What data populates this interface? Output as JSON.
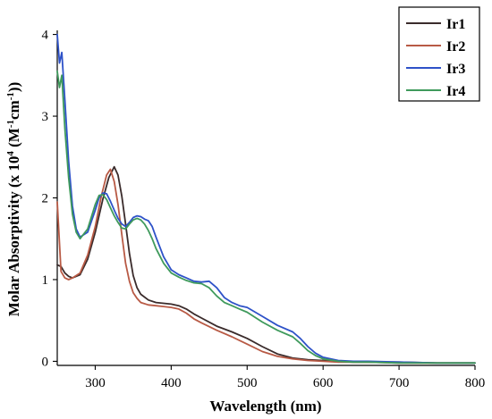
{
  "chart_data": {
    "type": "line",
    "title": "",
    "xlabel": "Wavelength (nm)",
    "ylabel": {
      "prefix": "Molar Absorptivity (x 10",
      "exp1": "4",
      "mid": " (M",
      "exp2": "-1",
      "mid2": "cm",
      "exp3": "-1",
      "suffix": "))"
    },
    "xlim": [
      250,
      800
    ],
    "ylim": [
      -0.05,
      4.05
    ],
    "xticks": [
      300,
      400,
      500,
      600,
      700,
      800
    ],
    "yticks": [
      0,
      1,
      2,
      3,
      4
    ],
    "grid": false,
    "legend_position": "top-right",
    "series": [
      {
        "name": "Ir1",
        "color": "#3a2b2b",
        "x": [
          250,
          255,
          260,
          265,
          270,
          280,
          290,
          300,
          310,
          318,
          325,
          330,
          335,
          340,
          345,
          350,
          355,
          360,
          370,
          380,
          390,
          400,
          410,
          420,
          430,
          440,
          460,
          480,
          500,
          520,
          540,
          560,
          580,
          600,
          620,
          640,
          660,
          700,
          750,
          800
        ],
        "y": [
          1.18,
          1.16,
          1.08,
          1.04,
          1.02,
          1.06,
          1.25,
          1.58,
          1.98,
          2.25,
          2.38,
          2.28,
          2.02,
          1.68,
          1.32,
          1.05,
          0.9,
          0.82,
          0.75,
          0.72,
          0.71,
          0.7,
          0.68,
          0.64,
          0.58,
          0.53,
          0.43,
          0.36,
          0.28,
          0.18,
          0.09,
          0.04,
          0.02,
          0.01,
          0.0,
          -0.01,
          -0.01,
          -0.01,
          -0.02,
          -0.02
        ]
      },
      {
        "name": "Ir2",
        "color": "#b85a45",
        "x": [
          250,
          255,
          260,
          265,
          270,
          280,
          290,
          300,
          308,
          315,
          320,
          325,
          330,
          335,
          340,
          345,
          350,
          355,
          360,
          370,
          380,
          390,
          400,
          410,
          420,
          430,
          440,
          460,
          480,
          500,
          520,
          540,
          560,
          580,
          600,
          620,
          640,
          660,
          700,
          750,
          800
        ],
        "y": [
          1.95,
          1.1,
          1.02,
          1.0,
          1.02,
          1.08,
          1.3,
          1.65,
          2.02,
          2.28,
          2.35,
          2.2,
          1.92,
          1.55,
          1.2,
          0.98,
          0.84,
          0.77,
          0.72,
          0.69,
          0.68,
          0.67,
          0.66,
          0.64,
          0.59,
          0.52,
          0.47,
          0.38,
          0.3,
          0.21,
          0.12,
          0.06,
          0.03,
          0.01,
          0.0,
          -0.01,
          -0.01,
          -0.01,
          -0.02,
          -0.02,
          -0.02
        ]
      },
      {
        "name": "Ir3",
        "color": "#2e52c8",
        "x": [
          250,
          253,
          256,
          260,
          265,
          270,
          275,
          280,
          290,
          300,
          305,
          310,
          315,
          320,
          325,
          330,
          335,
          340,
          345,
          350,
          355,
          360,
          365,
          370,
          375,
          380,
          390,
          400,
          410,
          420,
          430,
          440,
          450,
          460,
          470,
          480,
          490,
          500,
          520,
          540,
          560,
          570,
          580,
          590,
          600,
          620,
          640,
          660,
          700,
          750,
          800
        ],
        "y": [
          4.0,
          3.65,
          3.78,
          3.2,
          2.45,
          1.9,
          1.62,
          1.52,
          1.58,
          1.85,
          2.0,
          2.06,
          2.05,
          1.96,
          1.85,
          1.75,
          1.68,
          1.65,
          1.7,
          1.76,
          1.78,
          1.77,
          1.74,
          1.72,
          1.65,
          1.52,
          1.28,
          1.12,
          1.06,
          1.02,
          0.98,
          0.97,
          0.98,
          0.9,
          0.78,
          0.72,
          0.68,
          0.66,
          0.55,
          0.44,
          0.36,
          0.28,
          0.18,
          0.1,
          0.05,
          0.01,
          0.0,
          0.0,
          -0.01,
          -0.02,
          -0.02
        ]
      },
      {
        "name": "Ir4",
        "color": "#3f9a5c",
        "x": [
          250,
          253,
          256,
          260,
          265,
          270,
          275,
          280,
          290,
          300,
          305,
          310,
          315,
          320,
          325,
          330,
          335,
          340,
          345,
          350,
          355,
          360,
          365,
          370,
          375,
          380,
          390,
          400,
          410,
          420,
          430,
          440,
          450,
          460,
          470,
          480,
          490,
          500,
          520,
          540,
          560,
          570,
          580,
          590,
          600,
          620,
          640,
          660,
          700,
          750,
          800
        ],
        "y": [
          3.55,
          3.35,
          3.5,
          2.85,
          2.25,
          1.8,
          1.58,
          1.5,
          1.62,
          1.92,
          2.03,
          2.04,
          1.98,
          1.88,
          1.78,
          1.7,
          1.63,
          1.62,
          1.68,
          1.73,
          1.75,
          1.73,
          1.68,
          1.6,
          1.5,
          1.38,
          1.2,
          1.08,
          1.03,
          0.99,
          0.96,
          0.95,
          0.9,
          0.8,
          0.72,
          0.68,
          0.64,
          0.6,
          0.48,
          0.38,
          0.3,
          0.22,
          0.13,
          0.07,
          0.03,
          0.0,
          -0.01,
          -0.01,
          -0.02,
          -0.02,
          -0.02
        ]
      }
    ]
  }
}
